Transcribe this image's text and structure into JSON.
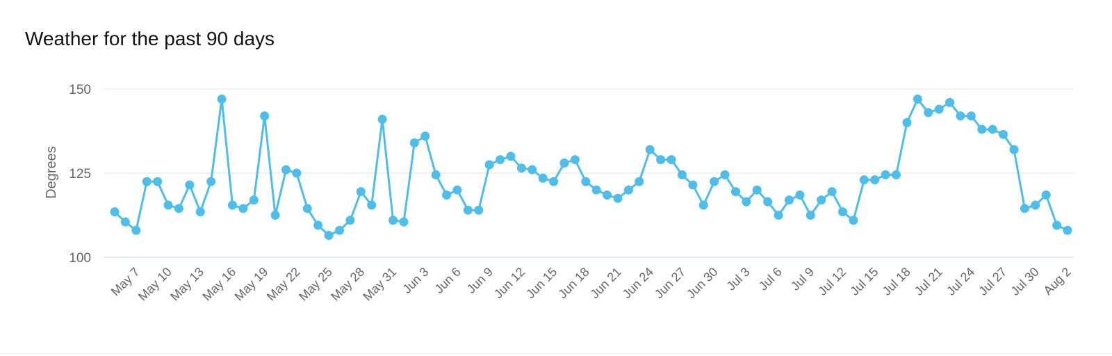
{
  "chart_data": {
    "type": "line",
    "title": "Weather for the past 90 days",
    "ylabel": "Degrees",
    "xlabel": "",
    "ylim": [
      100,
      150
    ],
    "yticks": [
      100,
      125,
      150
    ],
    "grid": true,
    "line_color": "#4dbde9",
    "x": [
      "May 5",
      "May 6",
      "May 7",
      "May 8",
      "May 9",
      "May 10",
      "May 11",
      "May 12",
      "May 13",
      "May 14",
      "May 15",
      "May 16",
      "May 17",
      "May 18",
      "May 19",
      "May 20",
      "May 21",
      "May 22",
      "May 23",
      "May 24",
      "May 25",
      "May 26",
      "May 27",
      "May 28",
      "May 29",
      "May 30",
      "May 31",
      "Jun 1",
      "Jun 2",
      "Jun 3",
      "Jun 4",
      "Jun 5",
      "Jun 6",
      "Jun 7",
      "Jun 8",
      "Jun 9",
      "Jun 10",
      "Jun 11",
      "Jun 12",
      "Jun 13",
      "Jun 14",
      "Jun 15",
      "Jun 16",
      "Jun 17",
      "Jun 18",
      "Jun 19",
      "Jun 20",
      "Jun 21",
      "Jun 22",
      "Jun 23",
      "Jun 24",
      "Jun 25",
      "Jun 26",
      "Jun 27",
      "Jun 28",
      "Jun 29",
      "Jun 30",
      "Jul 1",
      "Jul 2",
      "Jul 3",
      "Jul 4",
      "Jul 5",
      "Jul 6",
      "Jul 7",
      "Jul 8",
      "Jul 9",
      "Jul 10",
      "Jul 11",
      "Jul 12",
      "Jul 13",
      "Jul 14",
      "Jul 15",
      "Jul 16",
      "Jul 17",
      "Jul 18",
      "Jul 19",
      "Jul 20",
      "Jul 21",
      "Jul 22",
      "Jul 23",
      "Jul 24",
      "Jul 25",
      "Jul 26",
      "Jul 27",
      "Jul 28",
      "Jul 29",
      "Jul 30",
      "Jul 31",
      "Aug 1",
      "Aug 2"
    ],
    "tick_labels": [
      "May 7",
      "May 10",
      "May 13",
      "May 16",
      "May 19",
      "May 22",
      "May 25",
      "May 28",
      "May 31",
      "Jun 3",
      "Jun 6",
      "Jun 9",
      "Jun 12",
      "Jun 15",
      "Jun 18",
      "Jun 21",
      "Jun 24",
      "Jun 27",
      "Jun 30",
      "Jul 3",
      "Jul 6",
      "Jul 9",
      "Jul 12",
      "Jul 15",
      "Jul 18",
      "Jul 21",
      "Jul 24",
      "Jul 27",
      "Jul 30",
      "Aug 2"
    ],
    "series": [
      {
        "values": [
          113.5,
          110.5,
          108,
          122.5,
          122.5,
          115.5,
          114.5,
          121.5,
          113.5,
          122.5,
          147,
          115.5,
          114.5,
          117,
          142,
          112.5,
          126,
          125,
          114.5,
          109.5,
          106.5,
          108,
          111,
          119.5,
          115.5,
          141,
          111,
          110.5,
          134,
          136,
          124.5,
          118.5,
          120,
          114,
          114,
          127.5,
          129,
          130,
          126.5,
          126,
          123.5,
          122.5,
          128,
          129,
          122.5,
          120,
          118.5,
          117.5,
          120,
          122.5,
          132,
          129,
          129,
          124.5,
          121.5,
          115.5,
          122.5,
          124.5,
          119.5,
          116.5,
          120,
          116.5,
          112.5,
          117,
          118.5,
          112.5,
          117,
          119.5,
          113.5,
          111,
          123,
          123,
          124.5,
          124.5,
          140,
          147,
          143,
          144,
          146,
          142,
          142,
          138,
          138,
          136.5,
          132,
          114.5,
          115.5,
          118.5,
          109.5,
          108
        ]
      }
    ]
  }
}
